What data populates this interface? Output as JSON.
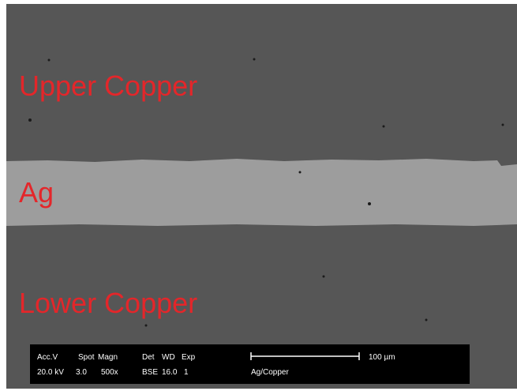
{
  "labels": {
    "upper": "Upper Copper",
    "middle": "Ag",
    "lower": "Lower Copper"
  },
  "info_bar": {
    "headers": [
      "Acc.V",
      "Spot",
      "Magn",
      "Det",
      "WD",
      "Exp"
    ],
    "values": [
      "20.0 kV",
      "3.0",
      "500x",
      "BSE",
      "16.0",
      "1"
    ],
    "scale": "100 µm",
    "sample": "Ag/Copper"
  }
}
